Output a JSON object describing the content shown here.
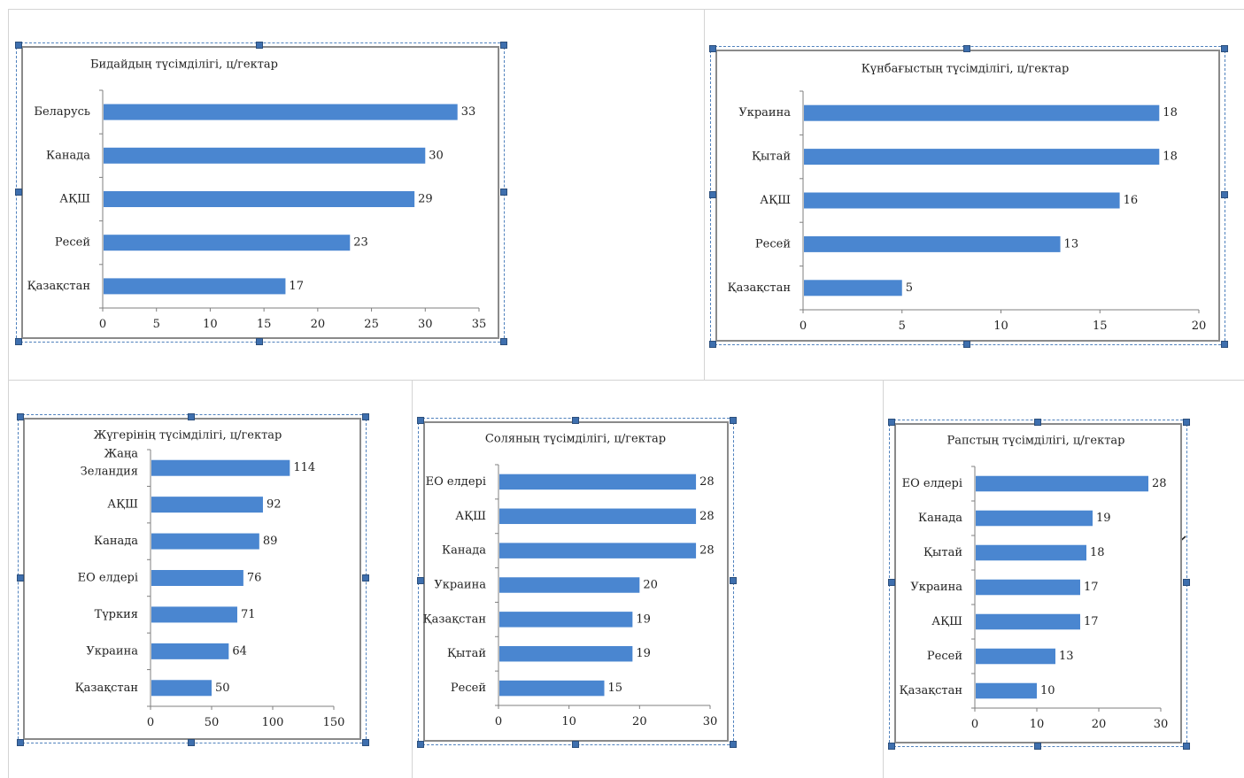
{
  "colors": {
    "bar": "#4a86d0",
    "axis": "#7f7f7f",
    "frame": "#8a8a8a",
    "selection": "#4f81bd"
  },
  "icons": {
    "pointer": "mouse-pointer-icon",
    "partial_pointer": "mouse-pointer-partial-icon"
  },
  "chart_data": [
    {
      "type": "bar",
      "orientation": "horizontal",
      "title": "Бидайдың түсімділігі, ц/гектар",
      "categories": [
        "Беларусь",
        "Канада",
        "АҚШ",
        "Ресей",
        "Қазақстан"
      ],
      "values": [
        33,
        30,
        29,
        23,
        17
      ],
      "xlim": [
        0,
        35
      ],
      "xticks": [
        0,
        5,
        10,
        15,
        20,
        25,
        30,
        35
      ],
      "xlabel": "",
      "ylabel": "",
      "legend": "none",
      "grid": false
    },
    {
      "type": "bar",
      "orientation": "horizontal",
      "title": "Күнбағыстың түсімділігі, ц/гектар",
      "categories": [
        "Украина",
        "Қытай",
        "АҚШ",
        "Ресей",
        "Қазақстан"
      ],
      "values": [
        18,
        18,
        16,
        13,
        5
      ],
      "xlim": [
        0,
        20
      ],
      "xticks": [
        0,
        5,
        10,
        15,
        20
      ],
      "xlabel": "",
      "ylabel": "",
      "legend": "none",
      "grid": false
    },
    {
      "type": "bar",
      "orientation": "horizontal",
      "title": "Жүгерінің түсімділігі, ц/гектар",
      "categories": [
        "Жаңа Зеландия",
        "АҚШ",
        "Канада",
        "ЕО елдері",
        "Түркия",
        "Украина",
        "Қазақстан"
      ],
      "values": [
        114,
        92,
        89,
        76,
        71,
        64,
        50
      ],
      "xlim": [
        0,
        150
      ],
      "xticks": [
        0,
        50,
        100,
        150
      ],
      "xlabel": "",
      "ylabel": "",
      "legend": "none",
      "grid": false
    },
    {
      "type": "bar",
      "orientation": "horizontal",
      "title": "Соляның түсімділігі, ц/гектар",
      "categories": [
        "ЕО елдері",
        "АҚШ",
        "Канада",
        "Украина",
        "Қазақстан",
        "Қытай",
        "Ресей"
      ],
      "values": [
        28,
        28,
        28,
        20,
        19,
        19,
        15
      ],
      "xlim": [
        0,
        30
      ],
      "xticks": [
        0,
        10,
        20,
        30
      ],
      "xlabel": "",
      "ylabel": "",
      "legend": "none",
      "grid": false
    },
    {
      "type": "bar",
      "orientation": "horizontal",
      "title": "Рапстың түсімділігі, ц/гектар",
      "categories": [
        "ЕО елдері",
        "Канада",
        "Қытай",
        "Украина",
        "АҚШ",
        "Ресей",
        "Қазақстан"
      ],
      "values": [
        28,
        19,
        18,
        17,
        17,
        13,
        10
      ],
      "xlim": [
        0,
        30
      ],
      "xticks": [
        0,
        10,
        20,
        30
      ],
      "xlabel": "",
      "ylabel": "",
      "legend": "none",
      "grid": false
    }
  ]
}
